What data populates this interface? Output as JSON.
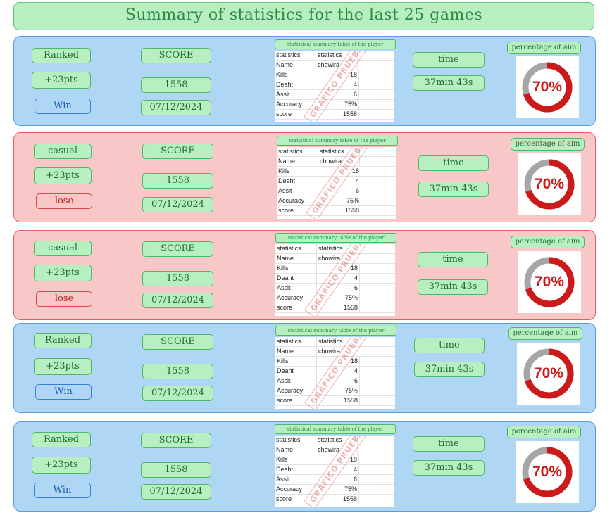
{
  "header": {
    "title": "Summary of statistics for the last 25 games"
  },
  "colors": {
    "ranked_blue": "#b0d6f6",
    "casual_red": "#f8c7c7",
    "pill_green": "#b7efc0",
    "aim_fill": "#cc1a1a",
    "aim_track": "#a6a6a6"
  },
  "games": [
    {
      "mode": "Ranked",
      "points": "+23pts",
      "result": "Win",
      "score_label": "SCORE",
      "score": "1558",
      "date": "07/12/2024",
      "table_title": "statistical summary table of the player",
      "table": [
        [
          "statistics",
          "statistics"
        ],
        [
          "Name",
          "chowira"
        ],
        [
          "Kills",
          "18"
        ],
        [
          "Deaht",
          "4"
        ],
        [
          "Assit",
          "6"
        ],
        [
          "Accuracy",
          "75%"
        ],
        [
          "score",
          "1558"
        ]
      ],
      "watermark": "GRÁFICO PRUEBA",
      "time_label": "time",
      "time": "37min 43s",
      "aim_label": "percentage of aim",
      "aim": "70%",
      "aim_value": 70
    },
    {
      "mode": "casual",
      "points": "+23pts",
      "result": "lose",
      "score_label": "SCORE",
      "score": "1558",
      "date": "07/12/2024",
      "table_title": "statistical summary table of the player",
      "table": [
        [
          "statistics",
          "statistics"
        ],
        [
          "Name",
          "chowira"
        ],
        [
          "Kills",
          "18"
        ],
        [
          "Deaht",
          "4"
        ],
        [
          "Assit",
          "6"
        ],
        [
          "Accuracy",
          "75%"
        ],
        [
          "score",
          "1558"
        ]
      ],
      "watermark": "GRÁFICO PRUEBA",
      "time_label": "time",
      "time": "37min 43s",
      "aim_label": "percentage of aim",
      "aim": "70%",
      "aim_value": 70
    },
    {
      "mode": "casual",
      "points": "+23pts",
      "result": "lose",
      "score_label": "SCORE",
      "score": "1558",
      "date": "07/12/2024",
      "table_title": "statistical summary table of the player",
      "table": [
        [
          "statistics",
          "statistics"
        ],
        [
          "Name",
          "chowira"
        ],
        [
          "Kills",
          "18"
        ],
        [
          "Deaht",
          "4"
        ],
        [
          "Assit",
          "6"
        ],
        [
          "Accuracy",
          "75%"
        ],
        [
          "score",
          "1558"
        ]
      ],
      "watermark": "GRÁFICO PRUEBA",
      "time_label": "time",
      "time": "37min 43s",
      "aim_label": "percentage of aim",
      "aim": "70%",
      "aim_value": 70
    },
    {
      "mode": "Ranked",
      "points": "+23pts",
      "result": "Win",
      "score_label": "SCORE",
      "score": "1558",
      "date": "07/12/2024",
      "table_title": "statistical summary table of the player",
      "table": [
        [
          "statistics",
          "statistics"
        ],
        [
          "Name",
          "chowira"
        ],
        [
          "Kills",
          "18"
        ],
        [
          "Deaht",
          "4"
        ],
        [
          "Assit",
          "6"
        ],
        [
          "Accuracy",
          "75%"
        ],
        [
          "score",
          "1558"
        ]
      ],
      "watermark": "GRÁFICO PRUEBA",
      "time_label": "time",
      "time": "37min 43s",
      "aim_label": "percentage of aim",
      "aim": "70%",
      "aim_value": 70
    },
    {
      "mode": "Ranked",
      "points": "+23pts",
      "result": "Win",
      "score_label": "SCORE",
      "score": "1558",
      "date": "07/12/2024",
      "table_title": "statistical summary table of the player",
      "table": [
        [
          "statistics",
          "statistics"
        ],
        [
          "Name",
          "chowira"
        ],
        [
          "Kills",
          "18"
        ],
        [
          "Deaht",
          "4"
        ],
        [
          "Assit",
          "6"
        ],
        [
          "Accuracy",
          "75%"
        ],
        [
          "score",
          "1558"
        ]
      ],
      "watermark": "GRÁFICO PRUEBA",
      "time_label": "time",
      "time": "37min 43s",
      "aim_label": "percentage of aim",
      "aim": "70%",
      "aim_value": 70
    }
  ]
}
